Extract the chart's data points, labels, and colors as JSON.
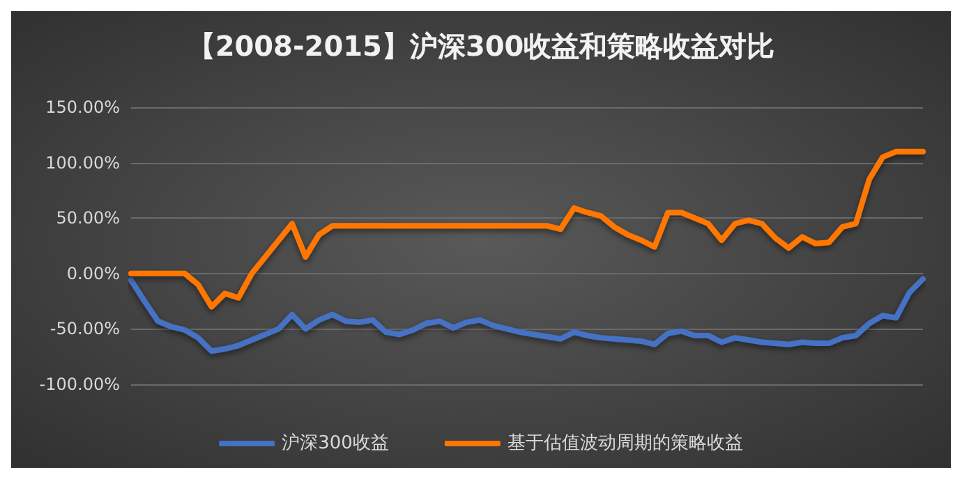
{
  "chart_data": {
    "type": "line",
    "title": "【2008-2015】沪深300收益和策略收益对比",
    "categories": [
      null,
      null,
      null,
      null,
      null,
      null,
      null,
      null,
      null,
      null,
      null,
      null,
      null,
      null,
      null,
      null,
      null,
      null,
      null,
      null,
      null,
      null,
      null,
      null,
      null,
      null,
      null,
      null,
      null,
      null,
      null,
      null,
      null,
      null,
      null,
      null,
      null,
      null,
      null,
      null,
      null,
      null,
      null,
      null,
      null,
      null,
      null,
      null,
      null,
      null,
      null,
      null,
      null,
      null,
      null,
      null,
      null,
      null,
      null,
      null
    ],
    "series": [
      {
        "name": "沪深300收益",
        "color": "#4472c4",
        "values": [
          -6,
          -25,
          -43,
          -48,
          -51,
          -58,
          -70,
          -68,
          -65,
          -60,
          -55,
          -50,
          -37,
          -50,
          -42,
          -37,
          -43,
          -44,
          -42,
          -53,
          -55,
          -51,
          -45,
          -43,
          -49,
          -44,
          -42,
          -47,
          -50,
          -53,
          -55,
          -57,
          -59,
          -53,
          -56,
          -58,
          -59,
          -60,
          -61,
          -64,
          -54,
          -52,
          -56,
          -56,
          -62,
          -58,
          -60,
          -62,
          -63,
          -64,
          -62,
          -63,
          -63,
          -58,
          -56,
          -45,
          -38,
          -40,
          -17,
          -5
        ]
      },
      {
        "name": "基于估值波动周期的策略收益",
        "color": "#ff7700",
        "values": [
          0,
          0,
          0,
          0,
          0,
          -10,
          -30,
          -18,
          -22,
          0,
          15,
          30,
          45,
          15,
          35,
          43,
          43,
          43,
          43,
          43,
          43,
          43,
          43,
          43,
          43,
          43,
          43,
          43,
          43,
          43,
          43,
          43,
          40,
          59,
          55,
          52,
          42,
          35,
          30,
          24,
          55,
          55,
          50,
          45,
          30,
          45,
          48,
          45,
          32,
          23,
          33,
          27,
          28,
          42,
          45,
          85,
          105,
          110,
          110,
          110
        ]
      }
    ],
    "ylim": [
      -100,
      150
    ],
    "yticks": [
      {
        "value": -100,
        "label": "-100.00%"
      },
      {
        "value": -50,
        "label": "-50.00%"
      },
      {
        "value": 0,
        "label": "0.00%"
      },
      {
        "value": 50,
        "label": "50.00%"
      },
      {
        "value": 100,
        "label": "100.00%"
      },
      {
        "value": 150,
        "label": "150.00%"
      }
    ],
    "grid": "y",
    "legend": "bottom",
    "marker": "none",
    "line_style": "solid"
  }
}
